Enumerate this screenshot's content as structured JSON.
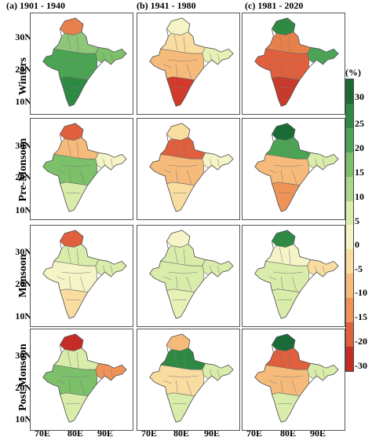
{
  "columns": [
    "(a) 1901 - 1940",
    "(b) 1941 - 1980",
    "(c) 1981 - 2020"
  ],
  "rows": [
    "Winters",
    "Pre-Monsoon",
    "Monsoon",
    "Post-Monsoon"
  ],
  "y_ticks": [
    "30N",
    "20N",
    "10N"
  ],
  "x_ticks": [
    "70E",
    "80E",
    "90E"
  ],
  "colorbar": {
    "unit": "(%)",
    "tick_labels": [
      "30",
      "25",
      "20",
      "15",
      "10",
      "5",
      "0",
      "-5",
      "-10",
      "-15",
      "-20",
      "-30"
    ],
    "colors": [
      "#1a6b35",
      "#2e8a43",
      "#4aa454",
      "#7cc06a",
      "#a9d68a",
      "#d9ecaa",
      "#f4f4c6",
      "#f9dca0",
      "#f6bb7a",
      "#ef9358",
      "#e05f3c",
      "#c42c25"
    ]
  },
  "maps": [
    {
      "row": "Winters",
      "column": "(a) 1901 - 1940",
      "kashmir": "#e8804c",
      "north": "#8fc77a",
      "central": "#4aa454",
      "south": "#2e8a43",
      "northeast": "#7cc06a"
    },
    {
      "row": "Winters",
      "column": "(b) 1941 - 1980",
      "kashmir": "#f4f4c6",
      "north": "#f9dca0",
      "central": "#f6bb7a",
      "south": "#d23a2c",
      "northeast": "#e6f1b6"
    },
    {
      "row": "Winters",
      "column": "(c) 1981 - 2020",
      "kashmir": "#2e8a43",
      "north": "#e8804c",
      "central": "#e05f3c",
      "south": "#c83a2c",
      "northeast": "#4aa454"
    },
    {
      "row": "Pre-Monsoon",
      "column": "(a) 1901 - 1940",
      "kashmir": "#e05f3c",
      "north": "#f6bb7a",
      "central": "#7cc06a",
      "south": "#d9ecaa",
      "northeast": "#f4f4c6"
    },
    {
      "row": "Pre-Monsoon",
      "column": "(b) 1941 - 1980",
      "kashmir": "#f9dca0",
      "north": "#e05f3c",
      "central": "#f6bb7a",
      "south": "#f9dca0",
      "northeast": "#f4f4c6"
    },
    {
      "row": "Pre-Monsoon",
      "column": "(c) 1981 - 2020",
      "kashmir": "#1a6b35",
      "north": "#4aa454",
      "central": "#f6bb7a",
      "south": "#ef9358",
      "northeast": "#d9ecaa"
    },
    {
      "row": "Monsoon",
      "column": "(a) 1901 - 1940",
      "kashmir": "#e05f3c",
      "north": "#d9ecaa",
      "central": "#f4f4c6",
      "south": "#f9dca0",
      "northeast": "#d9ecaa"
    },
    {
      "row": "Monsoon",
      "column": "(b) 1941 - 1980",
      "kashmir": "#f4f4c6",
      "north": "#d9ecaa",
      "central": "#d9ecaa",
      "south": "#e6f1b6",
      "northeast": "#d9ecaa"
    },
    {
      "row": "Monsoon",
      "column": "(c) 1981 - 2020",
      "kashmir": "#2e8a43",
      "north": "#f4f4c6",
      "central": "#d9ecaa",
      "south": "#d9ecaa",
      "northeast": "#f9dca0"
    },
    {
      "row": "Post-Monsoon",
      "column": "(a) 1901 - 1940",
      "kashmir": "#c42c25",
      "north": "#d9ecaa",
      "central": "#7cc06a",
      "south": "#d9ecaa",
      "northeast": "#ef9358"
    },
    {
      "row": "Post-Monsoon",
      "column": "(b) 1941 - 1980",
      "kashmir": "#f6bb7a",
      "north": "#2e8a43",
      "central": "#f9dca0",
      "south": "#d9ecaa",
      "northeast": "#d9ecaa"
    },
    {
      "row": "Post-Monsoon",
      "column": "(c) 1981 - 2020",
      "kashmir": "#1a6b35",
      "north": "#e05f3c",
      "central": "#f6bb7a",
      "south": "#d9ecaa",
      "northeast": "#d9ecaa"
    }
  ]
}
